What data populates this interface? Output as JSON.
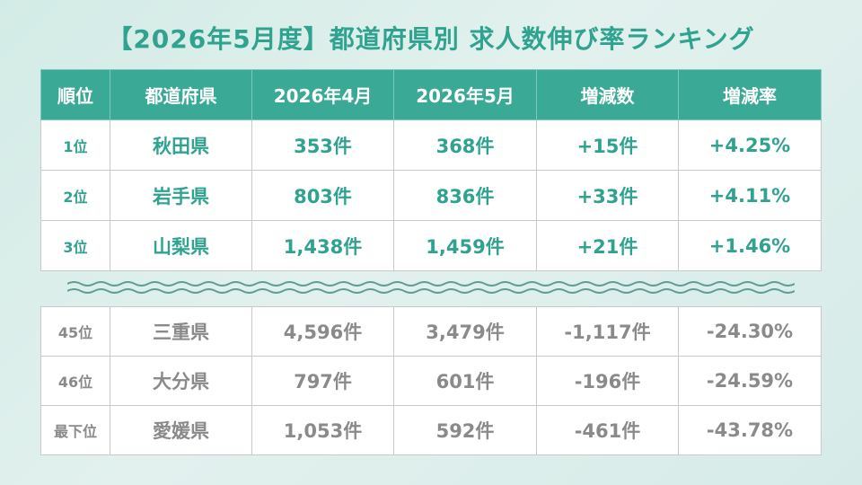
{
  "title": "【2026年5月度】都道府県別 求人数伸び率ランキング",
  "headers": [
    "順位",
    "都道府県",
    "2026年4月",
    "2026年5月",
    "増減数",
    "増減率"
  ],
  "top_rows": [
    [
      "1位",
      "秋田県",
      "353件",
      "368件",
      "+15件",
      "+4.25%"
    ],
    [
      "2位",
      "岩手県",
      "803件",
      "836件",
      "+33件",
      "+4.11%"
    ],
    [
      "3位",
      "山梨県",
      "1,438件",
      "1,459件",
      "+21件",
      "+1.46%"
    ]
  ],
  "bottom_rows": [
    [
      "45位",
      "三重県",
      "4,596件",
      "3,479件",
      "-1,117件",
      "-24.30%"
    ],
    [
      "46位",
      "大分県",
      "797件",
      "601件",
      "-196件",
      "-24.59%"
    ],
    [
      "最下位",
      "愛媛県",
      "1,053件",
      "592件",
      "-461件",
      "-43.78%"
    ]
  ],
  "colors": {
    "accent": "#3aa996",
    "text_accent": "#2fa290",
    "muted": "#8a8a8a"
  }
}
